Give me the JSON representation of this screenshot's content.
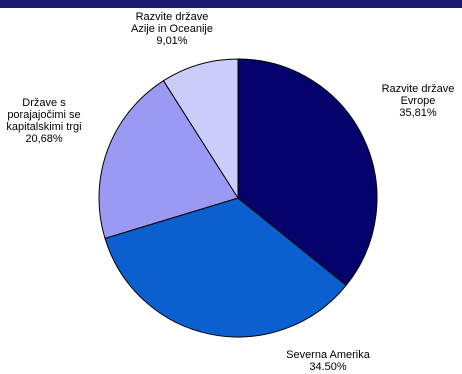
{
  "chart_data": {
    "type": "pie",
    "title": "",
    "slices": [
      {
        "label_lines": [
          "Razvite države",
          "Evrope"
        ],
        "value_label": "35,81%",
        "value": 35.81,
        "color": "#03036b"
      },
      {
        "label_lines": [
          "Severna Amerika"
        ],
        "value_label": "34.50%",
        "value": 34.5,
        "color": "#0b5fcf"
      },
      {
        "label_lines": [
          "Države s",
          "porajajočimi se",
          "kapitalskimi trgi"
        ],
        "value_label": "20,68%",
        "value": 20.68,
        "color": "#9a9af5"
      },
      {
        "label_lines": [
          "Razvite države",
          "Azije in Oceanije"
        ],
        "value_label": "9,01%",
        "value": 9.01,
        "color": "#ccccfb"
      }
    ],
    "start_angle_deg": 0,
    "direction": "clockwise",
    "legend": "none"
  }
}
